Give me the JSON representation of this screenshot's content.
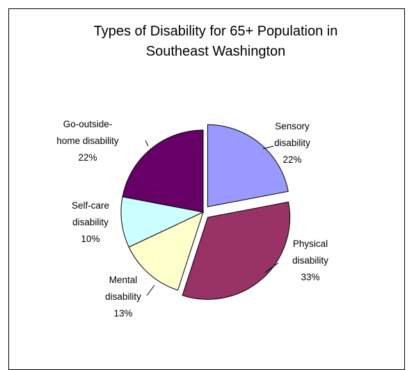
{
  "chart_data": {
    "type": "pie",
    "title_lines": [
      "Types of Disability for 65+ Population in",
      "Southeast Washington"
    ],
    "legend": "none",
    "slices": [
      {
        "name": "Sensory disability",
        "label_lines": [
          "Sensory",
          "disability"
        ],
        "percent_text": "22%",
        "value": 22,
        "color": "#9999ff",
        "exploded": true
      },
      {
        "name": "Physical disability",
        "label_lines": [
          "Physical",
          "disability"
        ],
        "percent_text": "33%",
        "value": 33,
        "color": "#993366",
        "exploded": true
      },
      {
        "name": "Mental disability",
        "label_lines": [
          "Mental",
          "disability"
        ],
        "percent_text": "13%",
        "value": 13,
        "color": "#ffffcc",
        "exploded": false
      },
      {
        "name": "Self-care disability",
        "label_lines": [
          "Self-care",
          "disability"
        ],
        "percent_text": "10%",
        "value": 10,
        "color": "#ccffff",
        "exploded": false
      },
      {
        "name": "Go-outside-home disability",
        "label_lines": [
          "Go-outside-",
          "home disability"
        ],
        "percent_text": "22%",
        "value": 22,
        "color": "#660066",
        "exploded": false
      }
    ]
  }
}
